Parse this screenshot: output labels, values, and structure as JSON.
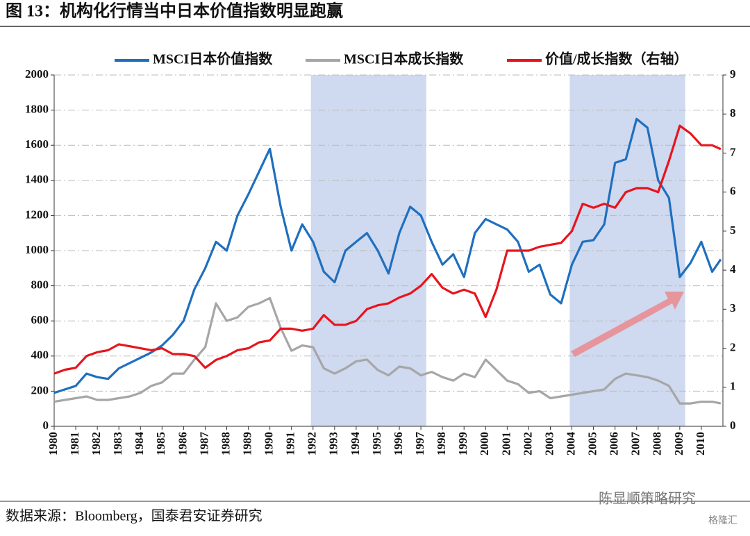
{
  "title": "图 13：机构化行情当中日本价值指数明显跑赢",
  "source": "数据来源：Bloomberg，国泰君安证券研究",
  "watermark": "陈显顺策略研究",
  "watermark2": "格隆汇",
  "chart_data": {
    "type": "line",
    "x": [
      1980,
      1980.5,
      1981,
      1981.5,
      1982,
      1982.5,
      1983,
      1983.5,
      1984,
      1984.5,
      1985,
      1985.5,
      1986,
      1986.5,
      1987,
      1987.5,
      1988,
      1988.5,
      1989,
      1989.5,
      1990,
      1990.5,
      1991,
      1991.5,
      1992,
      1992.5,
      1993,
      1993.5,
      1994,
      1994.5,
      1995,
      1995.5,
      1996,
      1996.5,
      1997,
      1997.5,
      1998,
      1998.5,
      1999,
      1999.5,
      2000,
      2000.5,
      2001,
      2001.5,
      2002,
      2002.5,
      2003,
      2003.5,
      2004,
      2004.5,
      2005,
      2005.5,
      2006,
      2006.5,
      2007,
      2007.5,
      2008,
      2008.5,
      2009,
      2009.5,
      2010,
      2010.5,
      2010.9
    ],
    "series": [
      {
        "name": "MSCI日本价值指数",
        "color": "#1f6fbf",
        "values": [
          190,
          210,
          230,
          300,
          280,
          270,
          330,
          360,
          390,
          420,
          460,
          520,
          600,
          780,
          900,
          1050,
          1000,
          1200,
          1320,
          1450,
          1580,
          1250,
          1000,
          1150,
          1050,
          880,
          820,
          1000,
          1050,
          1100,
          1000,
          870,
          1100,
          1250,
          1200,
          1050,
          920,
          980,
          850,
          1100,
          1180,
          1150,
          1120,
          1050,
          880,
          920,
          750,
          700,
          920,
          1050,
          1060,
          1150,
          1500,
          1520,
          1750,
          1700,
          1400,
          1300,
          850,
          930,
          1050,
          880,
          950
        ]
      },
      {
        "name": "MSCI日本成长指数",
        "color": "#a6a6a6",
        "values": [
          140,
          150,
          160,
          170,
          150,
          150,
          160,
          170,
          190,
          230,
          250,
          300,
          300,
          380,
          450,
          700,
          600,
          620,
          680,
          700,
          730,
          560,
          430,
          460,
          450,
          330,
          300,
          330,
          370,
          380,
          320,
          290,
          340,
          330,
          290,
          310,
          280,
          260,
          300,
          280,
          380,
          320,
          260,
          240,
          190,
          200,
          160,
          170,
          180,
          190,
          200,
          210,
          270,
          300,
          290,
          280,
          260,
          230,
          130,
          130,
          140,
          140,
          130
        ]
      },
      {
        "name": "价值/成长指数（右轴）",
        "color": "#e8141c",
        "axis": "y2",
        "values": [
          1.35,
          1.45,
          1.5,
          1.8,
          1.9,
          1.95,
          2.1,
          2.05,
          2.0,
          1.95,
          2.0,
          1.85,
          1.85,
          1.8,
          1.5,
          1.7,
          1.8,
          1.95,
          2.0,
          2.15,
          2.2,
          2.5,
          2.5,
          2.45,
          2.5,
          2.85,
          2.6,
          2.6,
          2.7,
          3.0,
          3.1,
          3.15,
          3.3,
          3.4,
          3.6,
          3.9,
          3.55,
          3.4,
          3.5,
          3.4,
          2.8,
          3.5,
          4.5,
          4.5,
          4.5,
          4.6,
          4.65,
          4.7,
          5.0,
          5.7,
          5.6,
          5.7,
          5.6,
          6.0,
          6.1,
          6.1,
          6.0,
          6.8,
          7.7,
          7.5,
          7.2,
          7.2,
          7.1
        ]
      }
    ],
    "xlim": [
      1980,
      2011
    ],
    "xticks": [
      1980,
      1981,
      1982,
      1983,
      1984,
      1985,
      1986,
      1987,
      1988,
      1989,
      1990,
      1991,
      1992,
      1993,
      1994,
      1995,
      1996,
      1997,
      1998,
      1999,
      2000,
      2001,
      2002,
      2003,
      2004,
      2005,
      2006,
      2007,
      2008,
      2009,
      2010
    ],
    "ylim": [
      0,
      2000
    ],
    "yticks": [
      0,
      200,
      400,
      600,
      800,
      1000,
      1200,
      1400,
      1600,
      1800,
      2000
    ],
    "y2lim": [
      0,
      9
    ],
    "y2ticks": [
      0,
      1,
      2,
      3,
      4,
      5,
      6,
      7,
      8,
      9
    ],
    "shaded_ranges": [
      [
        1991.9,
        1997.25
      ],
      [
        2003.9,
        2009.25
      ]
    ],
    "shade_color": "#cfd9ef",
    "grid": true,
    "legend": "top"
  }
}
